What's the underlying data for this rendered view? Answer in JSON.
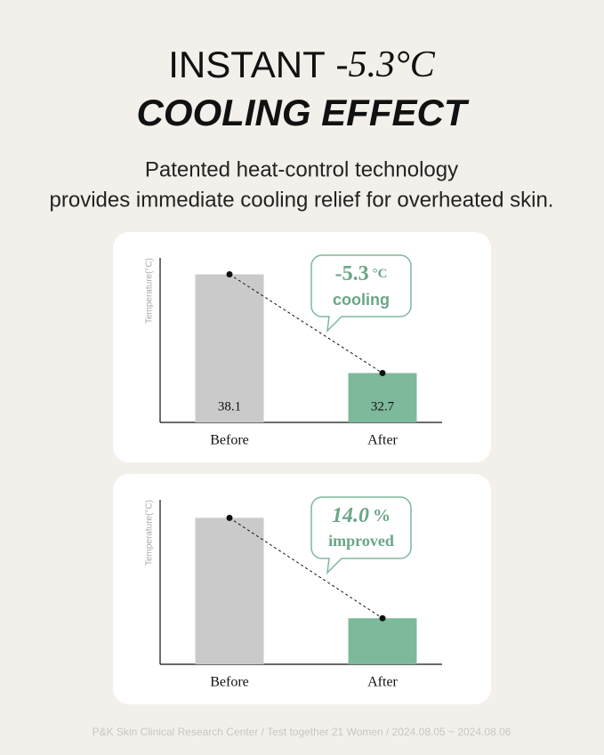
{
  "header": {
    "title_plain": "INSTANT",
    "title_accent": "-5.3°C",
    "title_line2": "COOLING EFFECT",
    "subtitle_line1": "Patented heat-control technology",
    "subtitle_line2": "provides immediate cooling relief for overheated skin."
  },
  "chart_data": [
    {
      "type": "bar",
      "y_label": "Temperature(°C)",
      "categories": [
        "Before",
        "After"
      ],
      "values": [
        38.1,
        32.7
      ],
      "colors": [
        "#cacaca",
        "#7db99b"
      ],
      "ylim": [
        30,
        39
      ],
      "show_value_labels": true,
      "callout": {
        "number": "-5.3",
        "unit": "°C",
        "text": "cooling",
        "italic": false
      }
    },
    {
      "type": "bar",
      "y_label": "Temperature(°C)",
      "categories": [
        "Before",
        "After"
      ],
      "values": [
        89,
        28
      ],
      "colors": [
        "#cacaca",
        "#7db99b"
      ],
      "ylim": [
        0,
        100
      ],
      "show_value_labels": false,
      "callout": {
        "number": "14.0",
        "unit": "%",
        "text": "improved",
        "italic": true
      }
    }
  ],
  "footer": "P&K Skin Clinical Research Center / Test together 21 Women / 2024.08.05 ~ 2024.08.06"
}
